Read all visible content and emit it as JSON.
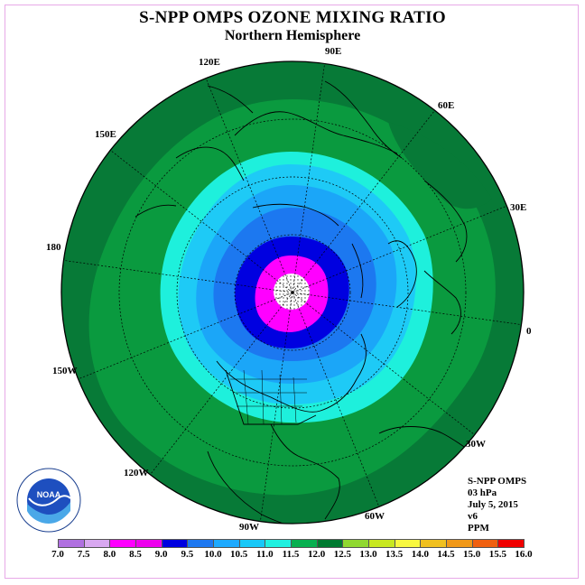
{
  "title": "S-NPP OMPS OZONE MIXING RATIO",
  "subtitle": "Northern Hemisphere",
  "longitude_labels": [
    "90E",
    "60E",
    "30E",
    "0",
    "30W",
    "60W",
    "90W",
    "120W",
    "150W",
    "180",
    "150E",
    "120E"
  ],
  "info": {
    "instrument": "S-NPP OMPS",
    "level": "03 hPa",
    "date": "July 5, 2015",
    "version": "v6",
    "units": "PPM"
  },
  "logo": {
    "text": "NOAA",
    "ring_text": "NATIONAL OCEANIC AND ATMOSPHERIC ADMINISTRATION · U.S. DEPARTMENT OF COMMERCE"
  },
  "legend": {
    "ticks": [
      "7.0",
      "7.5",
      "8.0",
      "8.5",
      "9.0",
      "9.5",
      "10.0",
      "10.5",
      "11.0",
      "11.5",
      "12.0",
      "12.5",
      "13.0",
      "13.5",
      "14.0",
      "14.5",
      "15.0",
      "15.5",
      "16.0"
    ],
    "colors": [
      "#b070e0",
      "#d8a8f0",
      "#ff00ff",
      "#ee00ee",
      "#0000e0",
      "#1e78f0",
      "#1eaaff",
      "#18c8f8",
      "#20f0e0",
      "#08b050",
      "#007a30",
      "#90d830",
      "#c8e820",
      "#f8f840",
      "#f0c020",
      "#f09818",
      "#f06010",
      "#f00000",
      "#8b4a2a"
    ]
  },
  "map_colors": {
    "outer": "#077a37",
    "band_green": "#0a9a3f",
    "cyan": "#1ef0dc",
    "light_blue": "#1ecaf6",
    "mid_blue": "#1ba6f8",
    "blue": "#1c78f0",
    "dark_blue": "#0000e0",
    "magenta": "#ff00ff",
    "pole_fill": "#ffffff"
  }
}
